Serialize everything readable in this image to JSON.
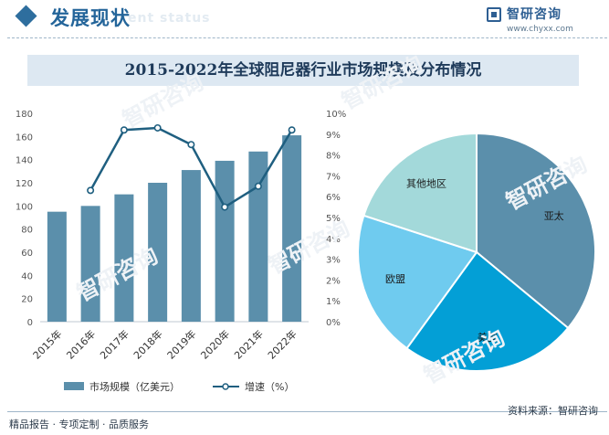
{
  "header": {
    "title": "发展现状",
    "subtitle": "ent status",
    "brand_name": "智研咨询",
    "brand_url": "www.chyxx.com"
  },
  "footer": {
    "left_text": "精品报告 · 专项定制 · 品质服务",
    "source_text": "资料来源：智研咨询",
    "watermark_text": "智研咨询"
  },
  "colors": {
    "bar": "#5b8fab",
    "line": "#1f5f80",
    "pie_asia": "#5b8fab",
    "pie_us": "#039fd6",
    "pie_europe": "#6fcbef",
    "pie_other": "#a3d9da",
    "title_band": "#dde8f2"
  },
  "chart_data": [
    {
      "type": "bar",
      "title": "2015-2022年全球阻尼器行业市场规模及分布情况",
      "categories": [
        "2015年",
        "2016年",
        "2017年",
        "2018年",
        "2019年",
        "2020年",
        "2021年",
        "2022年"
      ],
      "series": [
        {
          "name": "市场规模（亿美元）",
          "type": "bar",
          "axis": "left",
          "values": [
            95,
            100,
            110,
            120,
            131,
            139,
            147,
            161
          ]
        },
        {
          "name": "增速（%）",
          "type": "line",
          "axis": "right",
          "values": [
            null,
            6.3,
            9.2,
            9.3,
            8.5,
            5.5,
            6.5,
            9.2
          ]
        }
      ],
      "ylim_left": [
        0,
        180
      ],
      "yticks_left": [
        "0",
        "20",
        "40",
        "60",
        "80",
        "100",
        "120",
        "140",
        "160",
        "180"
      ],
      "ylim_right": [
        0,
        10
      ],
      "yticks_right": [
        "0%",
        "1%",
        "2%",
        "3%",
        "4%",
        "5%",
        "6%",
        "7%",
        "8%",
        "9%",
        "10%"
      ],
      "grid": false,
      "legend_position": "bottom"
    },
    {
      "type": "pie",
      "slices": [
        {
          "label": "亚太",
          "value": 36
        },
        {
          "label": "美国",
          "value": 24
        },
        {
          "label": "欧盟",
          "value": 20
        },
        {
          "label": "其他地区",
          "value": 20
        }
      ],
      "legend_position": "none"
    }
  ]
}
